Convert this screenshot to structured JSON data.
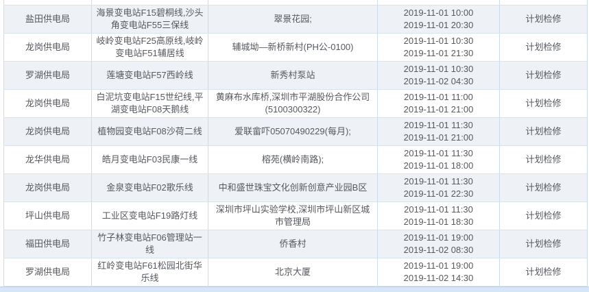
{
  "table": {
    "row_type_note": "planned maintenance outage schedule entries",
    "rows": [
      {
        "bureau": "盐田供电局",
        "line": "海景变电站F15碧桐线,沙头角变电站F55三保线",
        "area": "翠景花园;",
        "start": "2019-11-01 10:00",
        "end": "2019-11-01 20:30",
        "type": "计划检修"
      },
      {
        "bureau": "龙岗供电局",
        "line": "岐岭变电站F25高原线,岐岭变电站F51辅居线",
        "area": "辅城坳—新桥新村(PH公-0100)",
        "start": "2019-11-01 10:30",
        "end": "2019-11-01 21:30",
        "type": "计划检修"
      },
      {
        "bureau": "罗湖供电局",
        "line": "莲塘变电站F57西岭线",
        "area": "新秀村泵站",
        "start": "2019-11-01 10:30",
        "end": "2019-11-02 04:30",
        "type": "计划检修"
      },
      {
        "bureau": "龙岗供电局",
        "line": "白泥坑变电站F15世纪线,平湖变电站F08天鹅线",
        "area": "黄麻布水库桥,深圳市平湖股份合作公司(5100300322)",
        "start": "2019-11-01 11:00",
        "end": "2019-11-01 21:00",
        "type": "计划检修"
      },
      {
        "bureau": "龙岗供电局",
        "line": "植物园变电站F08沙荷二线",
        "area": "爱联畲吓05070490229(每月);",
        "start": "2019-11-01 11:30",
        "end": "2019-11-01 21:00",
        "type": "计划检修"
      },
      {
        "bureau": "龙华供电局",
        "line": "皓月变电站F03民康一线",
        "area": "榕苑(横岭南路);",
        "start": "2019-11-01 11:30",
        "end": "2019-11-01 18:00",
        "type": "计划检修"
      },
      {
        "bureau": "龙岗供电局",
        "line": "金泉变电站F02歌乐线",
        "area": "中和盛世珠宝文化创新创意产业园B区",
        "start": "2019-11-01 11:30",
        "end": "2019-11-01 22:30",
        "type": "计划检修"
      },
      {
        "bureau": "坪山供电局",
        "line": "工业区变电站F19路灯线",
        "area": "深圳市坪山实验学校,深圳市坪山新区城市管理局",
        "start": "2019-11-01 11:30",
        "end": "2019-11-01 18:30",
        "type": "计划检修"
      },
      {
        "bureau": "福田供电局",
        "line": "竹子林变电站F06管理站一线",
        "area": "侨香村",
        "start": "2019-11-01 19:00",
        "end": "2019-11-02 08:30",
        "type": "计划检修"
      },
      {
        "bureau": "罗湖供电局",
        "line": "红岭变电站F61松园北街华乐线",
        "area": "北京大厦",
        "start": "2019-11-01 19:00",
        "end": "2019-11-02 14:30",
        "type": "计划检修"
      }
    ]
  },
  "colors": {
    "row_alt_background": "#eef2f7",
    "grid_border": "#c9dcef",
    "text": "#55585e",
    "bottom_bar": "#d7e5f4"
  }
}
